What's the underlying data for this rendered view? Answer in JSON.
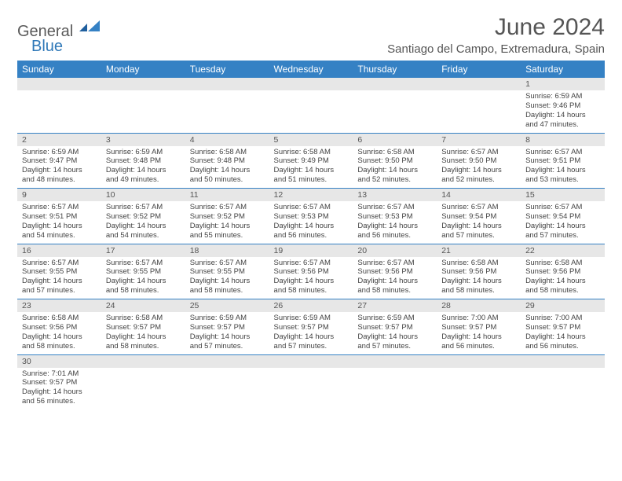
{
  "logo": {
    "line1": "General",
    "line2": "Blue"
  },
  "title": "June 2024",
  "location": "Santiago del Campo, Extremadura, Spain",
  "colors": {
    "header_bg": "#3581c4",
    "header_text": "#ffffff",
    "daynum_bg": "#e7e7e7",
    "row_border": "#3581c4",
    "text": "#444444",
    "logo_gray": "#5a5a5a",
    "logo_blue": "#2f78b8"
  },
  "day_headers": [
    "Sunday",
    "Monday",
    "Tuesday",
    "Wednesday",
    "Thursday",
    "Friday",
    "Saturday"
  ],
  "weeks": [
    [
      null,
      null,
      null,
      null,
      null,
      null,
      {
        "n": "1",
        "sr": "6:59 AM",
        "ss": "9:46 PM",
        "dl": "14 hours and 47 minutes."
      }
    ],
    [
      {
        "n": "2",
        "sr": "6:59 AM",
        "ss": "9:47 PM",
        "dl": "14 hours and 48 minutes."
      },
      {
        "n": "3",
        "sr": "6:59 AM",
        "ss": "9:48 PM",
        "dl": "14 hours and 49 minutes."
      },
      {
        "n": "4",
        "sr": "6:58 AM",
        "ss": "9:48 PM",
        "dl": "14 hours and 50 minutes."
      },
      {
        "n": "5",
        "sr": "6:58 AM",
        "ss": "9:49 PM",
        "dl": "14 hours and 51 minutes."
      },
      {
        "n": "6",
        "sr": "6:58 AM",
        "ss": "9:50 PM",
        "dl": "14 hours and 52 minutes."
      },
      {
        "n": "7",
        "sr": "6:57 AM",
        "ss": "9:50 PM",
        "dl": "14 hours and 52 minutes."
      },
      {
        "n": "8",
        "sr": "6:57 AM",
        "ss": "9:51 PM",
        "dl": "14 hours and 53 minutes."
      }
    ],
    [
      {
        "n": "9",
        "sr": "6:57 AM",
        "ss": "9:51 PM",
        "dl": "14 hours and 54 minutes."
      },
      {
        "n": "10",
        "sr": "6:57 AM",
        "ss": "9:52 PM",
        "dl": "14 hours and 54 minutes."
      },
      {
        "n": "11",
        "sr": "6:57 AM",
        "ss": "9:52 PM",
        "dl": "14 hours and 55 minutes."
      },
      {
        "n": "12",
        "sr": "6:57 AM",
        "ss": "9:53 PM",
        "dl": "14 hours and 56 minutes."
      },
      {
        "n": "13",
        "sr": "6:57 AM",
        "ss": "9:53 PM",
        "dl": "14 hours and 56 minutes."
      },
      {
        "n": "14",
        "sr": "6:57 AM",
        "ss": "9:54 PM",
        "dl": "14 hours and 57 minutes."
      },
      {
        "n": "15",
        "sr": "6:57 AM",
        "ss": "9:54 PM",
        "dl": "14 hours and 57 minutes."
      }
    ],
    [
      {
        "n": "16",
        "sr": "6:57 AM",
        "ss": "9:55 PM",
        "dl": "14 hours and 57 minutes."
      },
      {
        "n": "17",
        "sr": "6:57 AM",
        "ss": "9:55 PM",
        "dl": "14 hours and 58 minutes."
      },
      {
        "n": "18",
        "sr": "6:57 AM",
        "ss": "9:55 PM",
        "dl": "14 hours and 58 minutes."
      },
      {
        "n": "19",
        "sr": "6:57 AM",
        "ss": "9:56 PM",
        "dl": "14 hours and 58 minutes."
      },
      {
        "n": "20",
        "sr": "6:57 AM",
        "ss": "9:56 PM",
        "dl": "14 hours and 58 minutes."
      },
      {
        "n": "21",
        "sr": "6:58 AM",
        "ss": "9:56 PM",
        "dl": "14 hours and 58 minutes."
      },
      {
        "n": "22",
        "sr": "6:58 AM",
        "ss": "9:56 PM",
        "dl": "14 hours and 58 minutes."
      }
    ],
    [
      {
        "n": "23",
        "sr": "6:58 AM",
        "ss": "9:56 PM",
        "dl": "14 hours and 58 minutes."
      },
      {
        "n": "24",
        "sr": "6:58 AM",
        "ss": "9:57 PM",
        "dl": "14 hours and 58 minutes."
      },
      {
        "n": "25",
        "sr": "6:59 AM",
        "ss": "9:57 PM",
        "dl": "14 hours and 57 minutes."
      },
      {
        "n": "26",
        "sr": "6:59 AM",
        "ss": "9:57 PM",
        "dl": "14 hours and 57 minutes."
      },
      {
        "n": "27",
        "sr": "6:59 AM",
        "ss": "9:57 PM",
        "dl": "14 hours and 57 minutes."
      },
      {
        "n": "28",
        "sr": "7:00 AM",
        "ss": "9:57 PM",
        "dl": "14 hours and 56 minutes."
      },
      {
        "n": "29",
        "sr": "7:00 AM",
        "ss": "9:57 PM",
        "dl": "14 hours and 56 minutes."
      }
    ],
    [
      {
        "n": "30",
        "sr": "7:01 AM",
        "ss": "9:57 PM",
        "dl": "14 hours and 56 minutes."
      },
      null,
      null,
      null,
      null,
      null,
      null
    ]
  ],
  "labels": {
    "sunrise": "Sunrise: ",
    "sunset": "Sunset: ",
    "daylight": "Daylight: "
  }
}
